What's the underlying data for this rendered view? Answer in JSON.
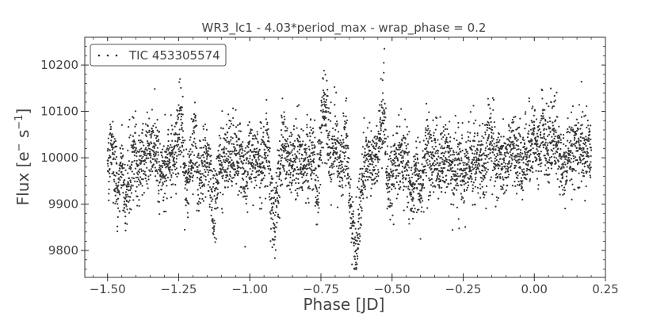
{
  "chart_data": {
    "type": "scatter",
    "title": "WR3_lc1 - 4.03*period_max - wrap_phase = 0.2",
    "xlabel": "Phase [JD]",
    "ylabel_main": "Flux [e",
    "ylabel_sup1": "−",
    "ylabel_mid": " s",
    "ylabel_sup2": "−1",
    "ylabel_end": "]",
    "xlim": [
      -1.58,
      0.25
    ],
    "ylim": [
      9742,
      10260
    ],
    "xticks": [
      -1.5,
      -1.25,
      -1.0,
      -0.75,
      -0.5,
      -0.25,
      0.0,
      0.25
    ],
    "xtick_labels": [
      "−1.50",
      "−1.25",
      "−1.00",
      "−0.75",
      "−0.50",
      "−0.25",
      "0.00",
      "0.25"
    ],
    "yticks": [
      9800,
      9900,
      10000,
      10100,
      10200
    ],
    "ytick_labels": [
      "9800",
      "9900",
      "10000",
      "10100",
      "10200"
    ],
    "grid": false,
    "legend_position": "top-left",
    "series": [
      {
        "name": "TIC 453305574",
        "color": "#333333",
        "marker": "dot",
        "x_range": [
          -1.5,
          0.2
        ],
        "baseline_flux": 9995,
        "scatter_sigma": 40,
        "n_points": 4500,
        "flux_min": 9760,
        "flux_max": 10235
      }
    ]
  }
}
